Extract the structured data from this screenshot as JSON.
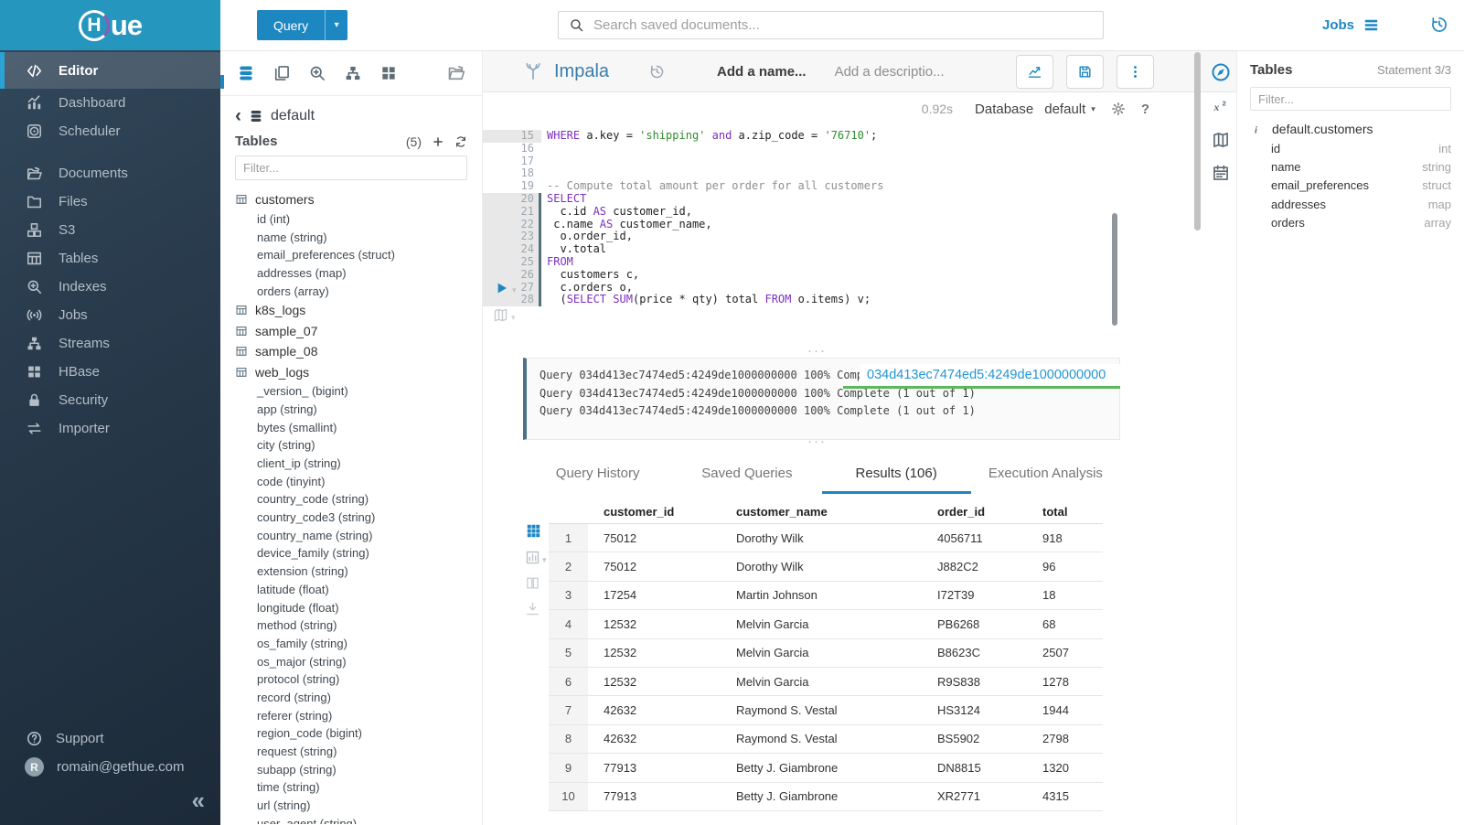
{
  "brand": {
    "logo_h": "H",
    "logo_ue": "ue"
  },
  "colors": {
    "accent_blue": "#1d87c2",
    "brand_banner": "#2596be",
    "link_blue": "#2196d3",
    "success_green": "#5cb85c"
  },
  "topbar": {
    "query_button": "Query",
    "search_placeholder": "Search saved documents...",
    "jobs_label": "Jobs"
  },
  "sidebar": {
    "items": [
      {
        "label": "Editor",
        "icon": "code",
        "active": true
      },
      {
        "label": "Dashboard",
        "icon": "dashboard"
      },
      {
        "label": "Scheduler",
        "icon": "scheduler",
        "gap_after": true
      },
      {
        "label": "Documents",
        "icon": "documents"
      },
      {
        "label": "Files",
        "icon": "folder"
      },
      {
        "label": "S3",
        "icon": "cubes"
      },
      {
        "label": "Tables",
        "icon": "table-grid"
      },
      {
        "label": "Indexes",
        "icon": "search-plus"
      },
      {
        "label": "Jobs",
        "icon": "broadcast"
      },
      {
        "label": "Streams",
        "icon": "sitemap"
      },
      {
        "label": "HBase",
        "icon": "blocks"
      },
      {
        "label": "Security",
        "icon": "lock"
      },
      {
        "label": "Importer",
        "icon": "swap-arrows"
      }
    ],
    "support_label": "Support",
    "user_email": "romain@gethue.com",
    "avatar_letter": "R"
  },
  "left_panel": {
    "breadcrumb_db": "default",
    "tables_label": "Tables",
    "tables_count": "(5)",
    "filter_placeholder": "Filter...",
    "tables": [
      {
        "name": "customers",
        "columns": [
          "id (int)",
          "name (string)",
          "email_preferences (struct)",
          "addresses (map)",
          "orders (array)"
        ]
      },
      {
        "name": "k8s_logs",
        "columns": []
      },
      {
        "name": "sample_07",
        "columns": []
      },
      {
        "name": "sample_08",
        "columns": []
      },
      {
        "name": "web_logs",
        "columns": [
          "_version_ (bigint)",
          "app (string)",
          "bytes (smallint)",
          "city (string)",
          "client_ip (string)",
          "code (tinyint)",
          "country_code (string)",
          "country_code3 (string)",
          "country_name (string)",
          "device_family (string)",
          "extension (string)",
          "latitude (float)",
          "longitude (float)",
          "method (string)",
          "os_family (string)",
          "os_major (string)",
          "protocol (string)",
          "record (string)",
          "referer (string)",
          "region_code (bigint)",
          "request (string)",
          "subapp (string)",
          "time (string)",
          "url (string)",
          "user_agent (string)"
        ]
      }
    ]
  },
  "editor": {
    "engine": "Impala",
    "name_placeholder": "Add a name...",
    "description_placeholder": "Add a descriptio...",
    "exec_time": "0.92s",
    "database_label": "Database",
    "database_value": "default",
    "code": [
      {
        "num": "15",
        "cursor_line": true,
        "segs": [
          [
            "k",
            "WHERE"
          ],
          [
            "p",
            " a.key = "
          ],
          [
            "s",
            "'shipping'"
          ],
          [
            "k",
            " and"
          ],
          [
            "p",
            " a.zip_code = "
          ],
          [
            "s",
            "'76710'"
          ],
          [
            "p",
            ";"
          ]
        ]
      },
      {
        "num": "16",
        "segs": []
      },
      {
        "num": "17",
        "segs": []
      },
      {
        "num": "18",
        "segs": []
      },
      {
        "num": "19",
        "segs": [
          [
            "c",
            "-- Compute total amount per order for all customers"
          ]
        ]
      },
      {
        "num": "20",
        "stmt": true,
        "segs": [
          [
            "k",
            "SELECT"
          ]
        ]
      },
      {
        "num": "21",
        "stmt": true,
        "segs": [
          [
            "p",
            "  c.id "
          ],
          [
            "k",
            "AS"
          ],
          [
            "p",
            " customer_id,"
          ]
        ]
      },
      {
        "num": "22",
        "stmt": true,
        "segs": [
          [
            "p",
            " c.name "
          ],
          [
            "k",
            "AS"
          ],
          [
            "p",
            " customer_name,"
          ]
        ]
      },
      {
        "num": "23",
        "stmt": true,
        "segs": [
          [
            "p",
            "  o.order_id,"
          ]
        ]
      },
      {
        "num": "24",
        "stmt": true,
        "segs": [
          [
            "p",
            "  v.total"
          ]
        ]
      },
      {
        "num": "25",
        "stmt": true,
        "segs": [
          [
            "k",
            "FROM"
          ]
        ]
      },
      {
        "num": "26",
        "stmt": true,
        "segs": [
          [
            "p",
            "  customers c,"
          ]
        ]
      },
      {
        "num": "27",
        "stmt": true,
        "segs": [
          [
            "p",
            "  c.orders o,"
          ]
        ]
      },
      {
        "num": "28",
        "stmt": true,
        "segs": [
          [
            "p",
            "  ("
          ],
          [
            "k",
            "SELECT"
          ],
          [
            "p",
            " "
          ],
          [
            "k",
            "SUM"
          ],
          [
            "p",
            "(price * qty) total "
          ],
          [
            "k",
            "FROM"
          ],
          [
            "p",
            " o.items) v;"
          ]
        ]
      }
    ]
  },
  "log": {
    "lines": [
      "Query 034d413ec7474ed5:4249de1000000000 100% Complete (1 out of 1)",
      "Query 034d413ec7474ed5:4249de1000000000 100% Complete (1 out of 1)",
      "Query 034d413ec7474ed5:4249de1000000000 100% Complete (1 out of 1)"
    ],
    "overlay_query_id": "034d413ec7474ed5:4249de1000000000"
  },
  "tabs": {
    "items": [
      "Query History",
      "Saved Queries",
      "Results (106)",
      "Execution Analysis"
    ],
    "active_index": 2
  },
  "results": {
    "columns": [
      "customer_id",
      "customer_name",
      "order_id",
      "total"
    ],
    "rows": [
      [
        "1",
        "75012",
        "Dorothy Wilk",
        "4056711",
        "918"
      ],
      [
        "2",
        "75012",
        "Dorothy Wilk",
        "J882C2",
        "96"
      ],
      [
        "3",
        "17254",
        "Martin Johnson",
        "I72T39",
        "18"
      ],
      [
        "4",
        "12532",
        "Melvin Garcia",
        "PB6268",
        "68"
      ],
      [
        "5",
        "12532",
        "Melvin Garcia",
        "B8623C",
        "2507"
      ],
      [
        "6",
        "12532",
        "Melvin Garcia",
        "R9S838",
        "1278"
      ],
      [
        "7",
        "42632",
        "Raymond S. Vestal",
        "HS3124",
        "1944"
      ],
      [
        "8",
        "42632",
        "Raymond S. Vestal",
        "BS5902",
        "2798"
      ],
      [
        "9",
        "77913",
        "Betty J. Giambrone",
        "DN8815",
        "1320"
      ],
      [
        "10",
        "77913",
        "Betty J. Giambrone",
        "XR2771",
        "4315"
      ]
    ]
  },
  "right_panel": {
    "title": "Tables",
    "statement_indicator": "Statement 3/3",
    "filter_placeholder": "Filter...",
    "table_name": "default.customers",
    "columns": [
      {
        "name": "id",
        "type": "int"
      },
      {
        "name": "name",
        "type": "string"
      },
      {
        "name": "email_preferences",
        "type": "struct"
      },
      {
        "name": "addresses",
        "type": "map"
      },
      {
        "name": "orders",
        "type": "array"
      }
    ]
  }
}
